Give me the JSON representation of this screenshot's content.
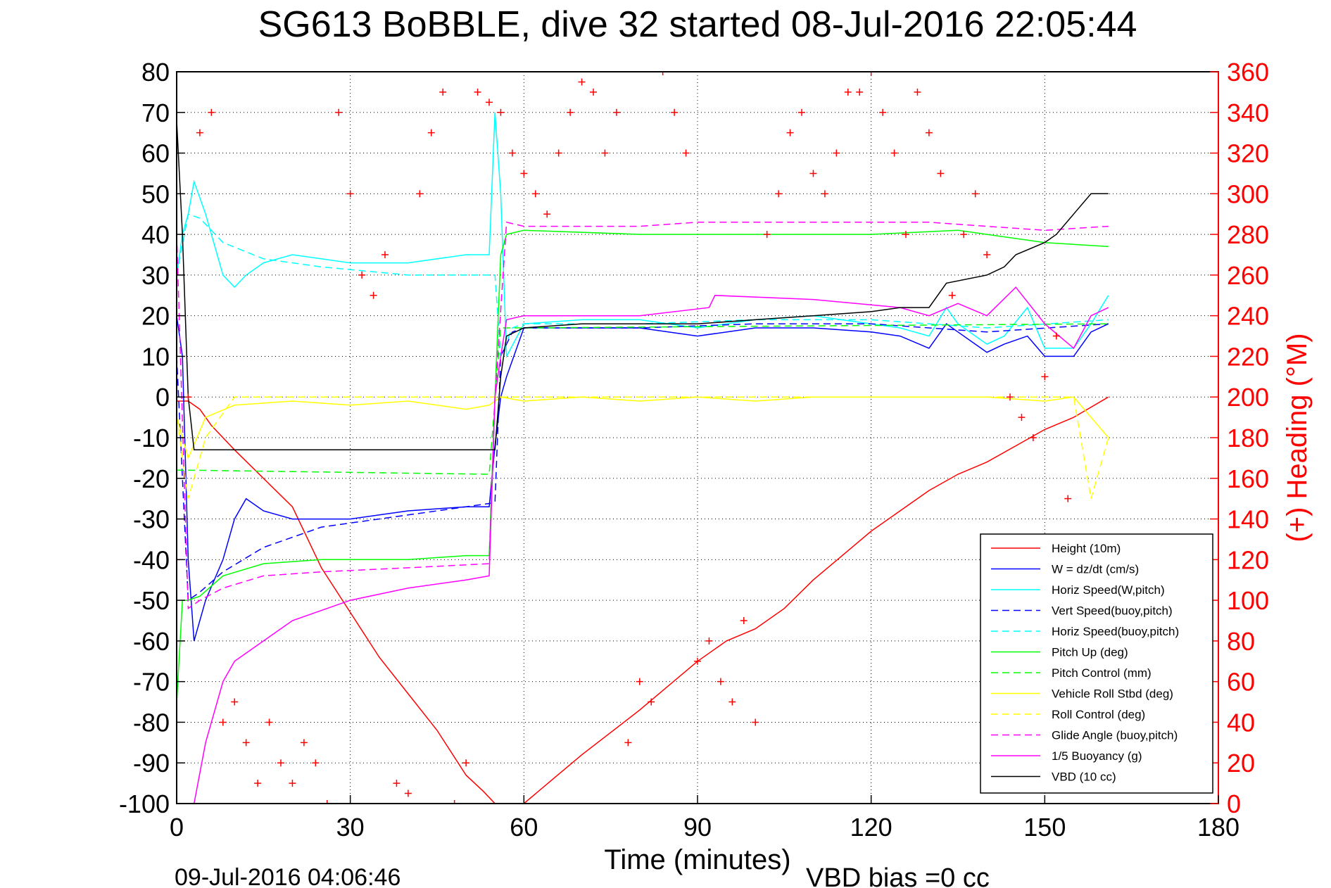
{
  "chart_data": {
    "type": "line",
    "title": "SG613 BoBBLE, dive 32 started 08-Jul-2016 22:05:44",
    "xlabel": "Time (minutes)",
    "ylabel_right": "(+) Heading (°M)",
    "footer_left": "09-Jul-2016 04:06:46",
    "footer_right": "VBD bias =0 cc",
    "xlim": [
      0,
      180
    ],
    "ylim_left": [
      -100,
      80
    ],
    "ylim_right": [
      0,
      360
    ],
    "x_ticks": [
      0,
      30,
      60,
      90,
      120,
      150,
      180
    ],
    "y_left_ticks": [
      80,
      70,
      60,
      50,
      40,
      30,
      20,
      10,
      0,
      -10,
      -20,
      -30,
      -40,
      -50,
      -60,
      -70,
      -80,
      -90,
      -100
    ],
    "y_right_ticks": [
      360,
      340,
      320,
      300,
      280,
      260,
      240,
      220,
      200,
      180,
      160,
      140,
      120,
      100,
      80,
      60,
      40,
      20,
      0
    ],
    "grid": true,
    "legend_position": "bottom-right",
    "colors": {
      "red": "#ff0000",
      "blue": "#0000ff",
      "cyan": "#00ffff",
      "green": "#00ff00",
      "yellow": "#ffff00",
      "magenta": "#ff00ff",
      "black": "#000000"
    },
    "series": [
      {
        "name": "Height (10m)",
        "color": "#ff0000",
        "style": "solid",
        "x": [
          0,
          1,
          2,
          4,
          6,
          10,
          15,
          20,
          25,
          30,
          35,
          40,
          45,
          50,
          53,
          55,
          56,
          58,
          60,
          65,
          70,
          80,
          90,
          95,
          100,
          105,
          110,
          115,
          120,
          125,
          130,
          135,
          140,
          145,
          150,
          155,
          161
        ],
        "y": [
          -1,
          -1,
          -1,
          -3,
          -7,
          -13,
          -20,
          -27,
          -42,
          -53,
          -64,
          -73,
          -82,
          -93,
          -97,
          -100,
          -100,
          -100,
          -100,
          -94,
          -88,
          -77,
          -65,
          -60,
          -57,
          -52,
          -45,
          -39,
          -33,
          -28,
          -23,
          -19,
          -16,
          -12,
          -8,
          -5,
          0
        ]
      },
      {
        "name": "W = dz/dt (cm/s)",
        "color": "#0000ff",
        "style": "solid",
        "x": [
          0,
          1,
          2,
          3,
          5,
          8,
          10,
          12,
          15,
          20,
          30,
          40,
          50,
          54,
          55,
          56,
          57,
          60,
          70,
          80,
          90,
          100,
          110,
          120,
          125,
          130,
          133,
          135,
          140,
          143,
          147,
          150,
          155,
          158,
          161
        ],
        "y": [
          20,
          10,
          -40,
          -60,
          -50,
          -40,
          -30,
          -25,
          -28,
          -30,
          -30,
          -28,
          -27,
          -27,
          -12,
          0,
          5,
          17,
          17,
          17,
          15,
          17,
          17,
          16,
          15,
          12,
          18,
          16,
          11,
          13,
          15,
          10,
          10,
          16,
          18
        ]
      },
      {
        "name": "Horiz Speed(W,pitch)",
        "color": "#00ffff",
        "style": "solid",
        "x": [
          0,
          1,
          2,
          3,
          5,
          8,
          10,
          12,
          15,
          20,
          30,
          40,
          50,
          54,
          55,
          56,
          57,
          60,
          70,
          80,
          90,
          100,
          110,
          120,
          125,
          130,
          133,
          135,
          140,
          143,
          147,
          150,
          155,
          158,
          161
        ],
        "y": [
          30,
          40,
          45,
          53,
          45,
          30,
          27,
          30,
          33,
          35,
          33,
          33,
          35,
          35,
          70,
          50,
          10,
          18,
          19,
          19,
          17,
          19,
          20,
          18,
          17,
          15,
          22,
          18,
          13,
          15,
          22,
          12,
          12,
          18,
          25
        ]
      },
      {
        "name": "Vert Speed(buoy,pitch)",
        "color": "#0000ff",
        "style": "dashed",
        "x": [
          0,
          2,
          4,
          8,
          15,
          25,
          40,
          55,
          56,
          58,
          60,
          80,
          100,
          120,
          140,
          161
        ],
        "y": [
          10,
          -50,
          -48,
          -43,
          -37,
          -32,
          -29,
          -26,
          10,
          16,
          17,
          17,
          18,
          18,
          16,
          18
        ]
      },
      {
        "name": "Horiz Speed(buoy,pitch)",
        "color": "#00ffff",
        "style": "dashed",
        "x": [
          0,
          2,
          4,
          8,
          15,
          25,
          40,
          55,
          56,
          58,
          60,
          80,
          100,
          120,
          140,
          161
        ],
        "y": [
          30,
          45,
          44,
          38,
          34,
          32,
          30,
          30,
          10,
          17,
          18,
          18,
          19,
          19,
          17,
          19
        ]
      },
      {
        "name": "Pitch Up (deg)",
        "color": "#00ff00",
        "style": "solid",
        "x": [
          0,
          1,
          2,
          4,
          8,
          15,
          25,
          40,
          50,
          54,
          55,
          56,
          57,
          60,
          80,
          100,
          120,
          135,
          140,
          150,
          161
        ],
        "y": [
          -75,
          -50,
          -50,
          -49,
          -44,
          -41,
          -40,
          -40,
          -39,
          -39,
          0,
          35,
          40,
          41,
          40,
          40,
          40,
          41,
          40,
          38,
          37
        ]
      },
      {
        "name": "Pitch Control (mm)",
        "color": "#00ff00",
        "style": "dashed",
        "x": [
          0,
          1,
          2,
          54,
          56,
          60,
          161
        ],
        "y": [
          -18,
          -18,
          -18,
          -19,
          17,
          17,
          18
        ]
      },
      {
        "name": "Vehicle Roll Stbd (deg)",
        "color": "#ffff00",
        "style": "solid",
        "x": [
          0,
          2,
          5,
          10,
          20,
          30,
          40,
          50,
          54,
          56,
          60,
          70,
          80,
          90,
          100,
          110,
          120,
          130,
          140,
          150,
          155,
          158,
          161
        ],
        "y": [
          -5,
          -15,
          -5,
          -2,
          -1,
          -2,
          -1,
          -3,
          -2,
          0,
          -1,
          0,
          -1,
          0,
          -1,
          0,
          0,
          0,
          0,
          -1,
          0,
          -5,
          -10
        ]
      },
      {
        "name": "Roll Control (deg)",
        "color": "#ffff00",
        "style": "dashed",
        "x": [
          0,
          2,
          5,
          10,
          20,
          30,
          40,
          50,
          54,
          56,
          60,
          70,
          80,
          90,
          100,
          110,
          120,
          130,
          140,
          150,
          155,
          158,
          161
        ],
        "y": [
          -5,
          -25,
          -10,
          0,
          0,
          0,
          0,
          0,
          0,
          0,
          0,
          0,
          0,
          0,
          0,
          0,
          0,
          0,
          0,
          0,
          0,
          -25,
          -10
        ]
      },
      {
        "name": "Glide Angle (buoy,pitch)",
        "color": "#ff00ff",
        "style": "dashed",
        "x": [
          0,
          2,
          4,
          8,
          15,
          25,
          40,
          54,
          55,
          57,
          60,
          70,
          80,
          90,
          100,
          110,
          120,
          130,
          140,
          150,
          161
        ],
        "y": [
          40,
          -52,
          -50,
          -47,
          -44,
          -43,
          -42,
          -41,
          0,
          43,
          42,
          42,
          42,
          43,
          43,
          43,
          43,
          43,
          42,
          41,
          42
        ]
      },
      {
        "name": "1/5 Buoyancy (g)",
        "color": "#ff00ff",
        "style": "solid",
        "x": [
          0,
          3,
          5,
          8,
          10,
          15,
          20,
          30,
          40,
          50,
          54,
          55,
          56,
          57,
          60,
          75,
          80,
          92,
          93,
          110,
          125,
          130,
          135,
          140,
          145,
          150,
          155,
          158,
          161
        ],
        "y": [
          -100,
          -100,
          -85,
          -70,
          -65,
          -60,
          -55,
          -50,
          -47,
          -45,
          -44,
          0,
          10,
          19,
          20,
          20,
          20,
          22,
          25,
          24,
          22,
          20,
          23,
          20,
          27,
          18,
          12,
          20,
          22
        ]
      },
      {
        "name": "VBD (10 cc)",
        "color": "#000000",
        "style": "solid",
        "x": [
          0,
          1,
          2,
          3,
          4,
          10,
          20,
          30,
          40,
          50,
          54,
          55,
          56,
          57,
          60,
          70,
          80,
          90,
          100,
          110,
          120,
          125,
          130,
          133,
          140,
          143,
          145,
          150,
          152,
          155,
          158,
          161
        ],
        "y": [
          68,
          40,
          0,
          -13,
          -13,
          -13,
          -13,
          -13,
          -13,
          -13,
          -13,
          -13,
          5,
          15,
          17,
          18,
          18,
          18,
          19,
          20,
          21,
          22,
          22,
          28,
          30,
          32,
          35,
          38,
          40,
          45,
          50,
          50
        ]
      },
      {
        "name": "Heading (°M)",
        "color": "#ff0000",
        "style": "plus",
        "x": [
          0,
          2,
          4,
          6,
          8,
          10,
          12,
          14,
          16,
          18,
          20,
          22,
          24,
          26,
          28,
          30,
          32,
          34,
          36,
          38,
          40,
          42,
          44,
          46,
          48,
          50,
          52,
          54,
          56,
          58,
          60,
          62,
          64,
          66,
          68,
          70,
          72,
          74,
          76,
          78,
          80,
          82,
          84,
          86,
          88,
          90,
          92,
          94,
          96,
          98,
          100,
          102,
          104,
          106,
          108,
          110,
          112,
          114,
          116,
          118,
          120,
          122,
          124,
          126,
          128,
          130,
          132,
          134,
          136,
          138,
          140,
          142,
          144,
          146,
          148,
          150,
          152,
          154,
          156,
          158,
          160
        ],
        "y": [
          120,
          200,
          330,
          340,
          40,
          50,
          30,
          10,
          40,
          20,
          10,
          30,
          20,
          0,
          340,
          300,
          260,
          250,
          270,
          10,
          5,
          300,
          330,
          350,
          0,
          20,
          350,
          345,
          340,
          320,
          310,
          300,
          290,
          320,
          340,
          355,
          350,
          320,
          340,
          30,
          60,
          50,
          360,
          340,
          320,
          70,
          80,
          60,
          50,
          90,
          40,
          280,
          300,
          330,
          340,
          310,
          300,
          320,
          350,
          350,
          360,
          340,
          320,
          280,
          350,
          330,
          310,
          250,
          280,
          300,
          270,
          130,
          200,
          190,
          180,
          210,
          230,
          150,
          120,
          110,
          80
        ]
      }
    ]
  }
}
